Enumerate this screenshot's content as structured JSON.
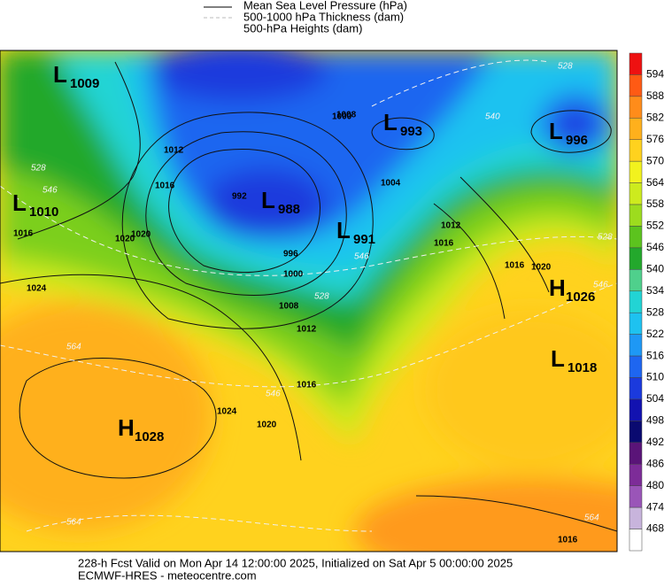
{
  "legend": [
    "Mean Sea Level Pressure (hPa)",
    "500-1000 hPa Thickness (dam)",
    "500-hPa Heights (dam)"
  ],
  "colorbar": {
    "labels": [
      594,
      588,
      582,
      576,
      570,
      564,
      558,
      552,
      546,
      540,
      534,
      528,
      522,
      516,
      510,
      504,
      498,
      492,
      486,
      480,
      474,
      468
    ],
    "colors": [
      "#ee1111",
      "#ff5a14",
      "#ff8c1a",
      "#ffb01c",
      "#ffd21e",
      "#f2f21e",
      "#cdeb1e",
      "#9ddc1e",
      "#5cc31e",
      "#23a82c",
      "#4fd08c",
      "#22d4d4",
      "#1ec2f0",
      "#1e98f5",
      "#1e66f0",
      "#1b3add",
      "#1212b0",
      "#0a0a70",
      "#5a1478",
      "#7d2c98",
      "#9a55b8",
      "#c8b4dc",
      "#ffffff"
    ]
  },
  "centers": [
    {
      "kind": "L",
      "value": "1009"
    },
    {
      "kind": "L",
      "value": "1010"
    },
    {
      "kind": "L",
      "value": "988"
    },
    {
      "kind": "L",
      "value": "991"
    },
    {
      "kind": "L",
      "value": "993"
    },
    {
      "kind": "L",
      "value": "996"
    },
    {
      "kind": "H",
      "value": "1026"
    },
    {
      "kind": "L",
      "value": "1018"
    },
    {
      "kind": "H",
      "value": "1028"
    }
  ],
  "isobar_labels": [
    "1016",
    "1024",
    "1020",
    "1012",
    "1016",
    "1020",
    "992",
    "996",
    "1000",
    "1008",
    "1012",
    "1004",
    "1016",
    "1024",
    "1020",
    "1016",
    "1020",
    "1012",
    "1008",
    "1000",
    "1016",
    "1016"
  ],
  "thickness_labels": [
    "528",
    "546",
    "564",
    "540",
    "528",
    "546",
    "546",
    "564",
    "528",
    "564",
    "546",
    "528"
  ],
  "footer": [
    "228-h Fcst Valid on Mon Apr 14 12:00:00 2025, Initialized on Sat Apr  5 00:00:00 2025",
    "ECMWF-HRES  - meteocentre.com"
  ]
}
